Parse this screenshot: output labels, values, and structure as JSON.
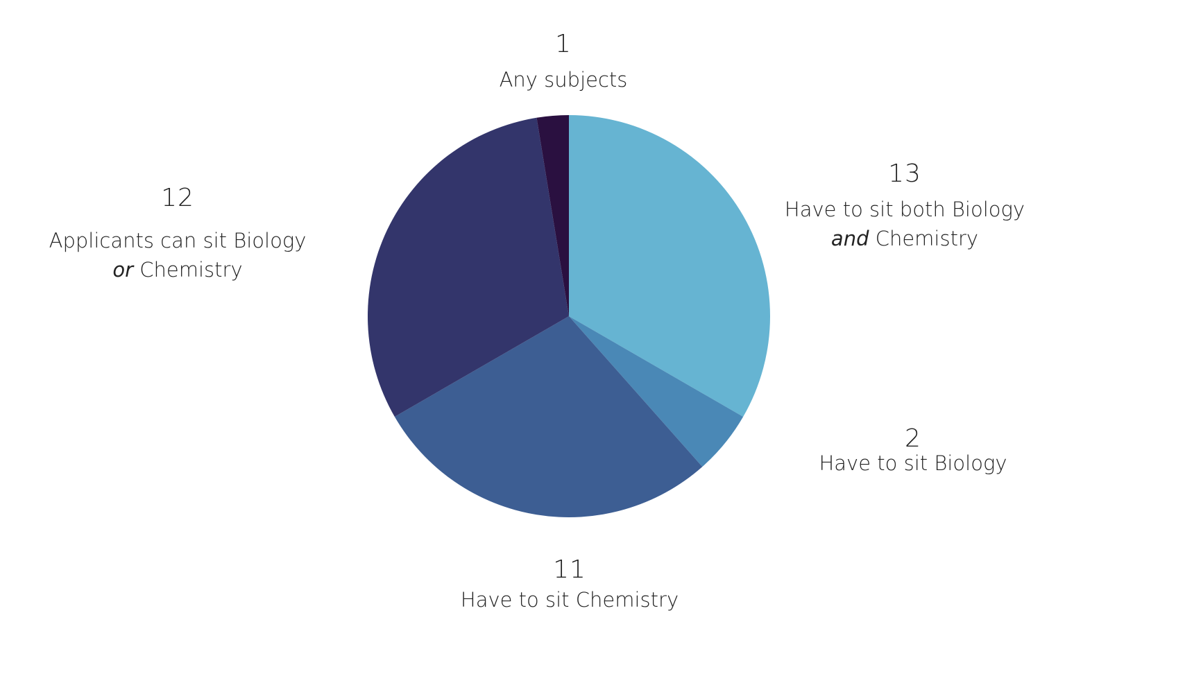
{
  "chart_data": {
    "type": "pie",
    "title": "",
    "start_angle_deg": 0,
    "direction": "clockwise",
    "center": [
      820,
      456
    ],
    "radius": 290,
    "slices": [
      {
        "key": "both",
        "value": 13,
        "label": "Have to sit both Biology and Chemistry",
        "label_line1": "Have to sit both Biology",
        "label_line2_italic": "and",
        "label_line2_rest": " Chemistry",
        "color": "#66B4D2"
      },
      {
        "key": "biology",
        "value": 2,
        "label": "Have to sit Biology",
        "label_line1": "Have to sit Biology",
        "color": "#4A88B6"
      },
      {
        "key": "chemistry",
        "value": 11,
        "label": "Have to sit Chemistry",
        "label_line1": "Have to sit Chemistry",
        "color": "#3D5E93"
      },
      {
        "key": "either",
        "value": 12,
        "label": "Applicants can sit Biology or Chemistry",
        "label_line1": "Applicants can sit Biology",
        "label_line2_italic": "or",
        "label_line2_rest": " Chemistry",
        "color": "#33356B"
      },
      {
        "key": "any",
        "value": 1,
        "label": "Any subjects",
        "label_line1": "Any subjects",
        "color": "#2A1040"
      }
    ],
    "categories": [
      "Have to sit both Biology and Chemistry",
      "Have to sit Biology",
      "Have to sit Chemistry",
      "Applicants can sit Biology or Chemistry",
      "Any subjects"
    ],
    "values": [
      13,
      2,
      11,
      12,
      1
    ],
    "total": 39,
    "legend": "none (direct labels)"
  },
  "labels": {
    "any": {
      "value": "1",
      "line1": "Any subjects"
    },
    "both": {
      "value": "13",
      "line1": "Have to sit both Biology",
      "line2_italic": "and",
      "line2_rest": " Chemistry"
    },
    "biology": {
      "value": "2",
      "line1": "Have to sit Biology"
    },
    "chemistry": {
      "value": "11",
      "line1": "Have to sit Chemistry"
    },
    "either": {
      "value": "12",
      "line1": "Applicants can sit Biology",
      "line2_italic": "or",
      "line2_rest": " Chemistry"
    }
  }
}
